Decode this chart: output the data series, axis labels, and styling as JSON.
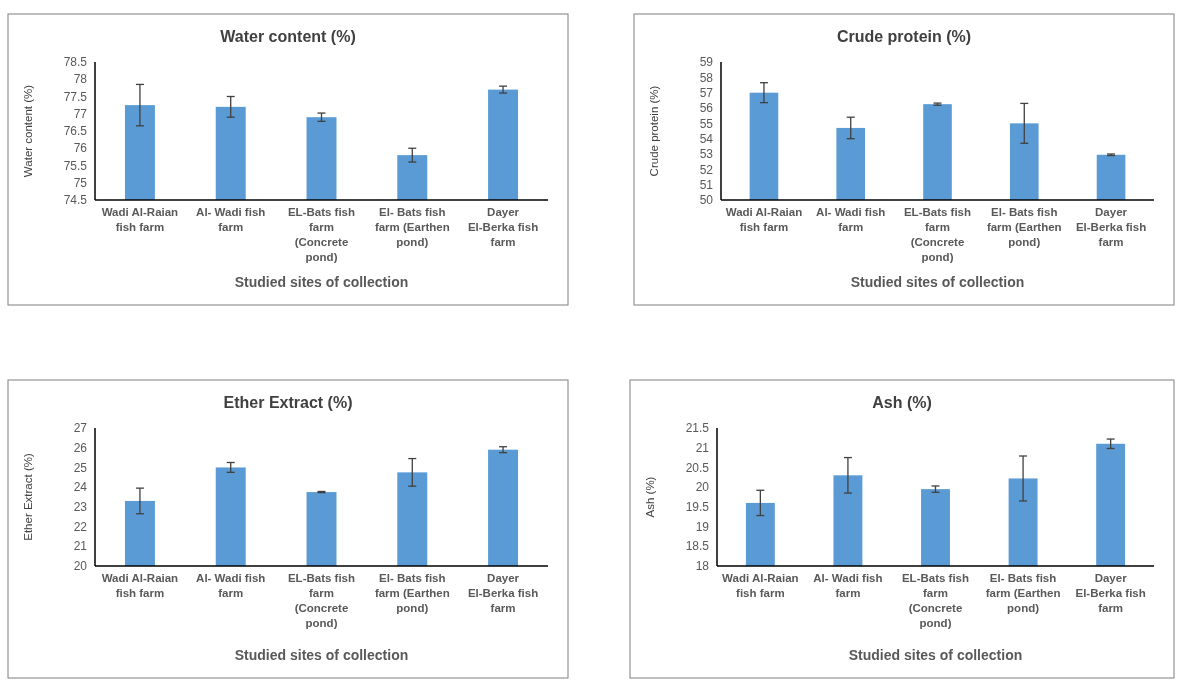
{
  "chart_data": [
    {
      "type": "bar",
      "title": "Water content (%)",
      "xlabel": "Studied sites of collection",
      "ylabel": "Water content (%)",
      "categories": [
        "Wadi Al-Raian fish farm",
        "Al- Wadi fish farm",
        "EL-Bats fish farm (Concrete pond)",
        "El- Bats fish farm (Earthen pond)",
        "Dayer El-Berka fish farm"
      ],
      "values": [
        77.25,
        77.2,
        76.9,
        75.8,
        77.7
      ],
      "errors": [
        0.6,
        0.3,
        0.12,
        0.2,
        0.1
      ],
      "color": "#5b9bd5",
      "ylim": [
        74.5,
        78.5
      ],
      "yticks": [
        74.5,
        75,
        75.5,
        76,
        76.5,
        77,
        77.5,
        78,
        78.5
      ]
    },
    {
      "type": "bar",
      "title": "Crude protein (%)",
      "xlabel": "Studied sites of collection",
      "ylabel": "Crude protein (%)",
      "categories": [
        "Wadi Al-Raian fish farm",
        "Al- Wadi fish farm",
        "EL-Bats fish farm (Concrete pond)",
        "El- Bats fish farm (Earthen pond)",
        "Dayer El-Berka fish farm"
      ],
      "values": [
        57.0,
        54.7,
        56.25,
        55.0,
        52.95
      ],
      "errors": [
        0.65,
        0.7,
        0.07,
        1.3,
        0.05
      ],
      "color": "#5b9bd5",
      "ylim": [
        50,
        59
      ],
      "yticks": [
        50,
        51,
        52,
        53,
        54,
        55,
        56,
        57,
        58,
        59
      ]
    },
    {
      "type": "bar",
      "title": "Ether Extract  (%)",
      "xlabel": "Studied sites of collection",
      "ylabel": "Ether Extract (%)",
      "categories": [
        "Wadi Al-Raian fish farm",
        "Al- Wadi fish farm",
        "EL-Bats fish farm (Concrete pond)",
        "El- Bats fish farm (Earthen pond)",
        "Dayer El-Berka fish farm"
      ],
      "values": [
        23.3,
        25.0,
        23.75,
        24.75,
        25.9
      ],
      "errors": [
        0.65,
        0.25,
        0.03,
        0.7,
        0.15
      ],
      "color": "#5b9bd5",
      "ylim": [
        20,
        27
      ],
      "yticks": [
        20,
        21,
        22,
        23,
        24,
        25,
        26,
        27
      ]
    },
    {
      "type": "bar",
      "title": "Ash (%)",
      "xlabel": "Studied sites of collection",
      "ylabel": "Ash (%)",
      "categories": [
        "Wadi Al-Raian fish farm",
        "Al- Wadi fish farm",
        "EL-Bats fish farm (Concrete pond)",
        "El- Bats fish farm (Earthen pond)",
        "Dayer El-Berka fish farm"
      ],
      "values": [
        19.6,
        20.3,
        19.95,
        20.22,
        21.1
      ],
      "errors": [
        0.32,
        0.45,
        0.08,
        0.57,
        0.12
      ],
      "color": "#5b9bd5",
      "ylim": [
        18,
        21.5
      ],
      "yticks": [
        18,
        18.5,
        19,
        19.5,
        20,
        20.5,
        21,
        21.5
      ]
    }
  ]
}
